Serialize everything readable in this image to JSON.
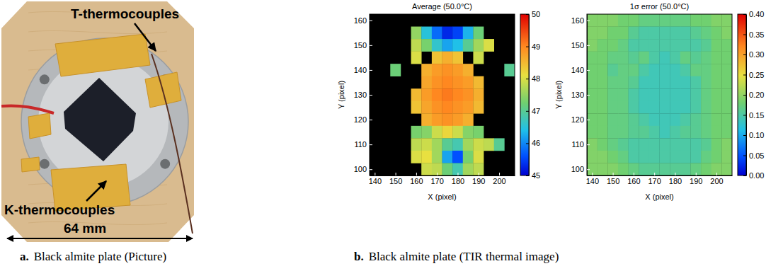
{
  "photo": {
    "labels": [
      "T-thermocouples",
      "K-thermocouples"
    ],
    "scale_label": "64 mm",
    "caption": {
      "letter": "a.",
      "text": "Black almite plate (Picture)"
    }
  },
  "figure_caption": {
    "letter": "b.",
    "text": "Black almite plate (TIR thermal image)"
  },
  "chart_data": [
    {
      "type": "heatmap",
      "title": "Average (50.0°C)",
      "x_label": "X (pixel)",
      "y_label": "Y (pixel)",
      "x": [
        140,
        145,
        150,
        155,
        160,
        165,
        170,
        175,
        180,
        185,
        190,
        195,
        200,
        205
      ],
      "y": [
        160,
        155,
        150,
        145,
        140,
        135,
        130,
        125,
        120,
        115,
        110,
        105,
        100
      ],
      "z": [
        [
          null,
          null,
          null,
          null,
          null,
          null,
          null,
          null,
          null,
          null,
          null,
          null,
          null,
          null
        ],
        [
          null,
          null,
          null,
          null,
          47.5,
          46.5,
          45.8,
          45.3,
          45.5,
          46.3,
          47.2,
          null,
          null,
          null
        ],
        [
          null,
          null,
          null,
          null,
          47.8,
          47.3,
          46.6,
          46.2,
          46.4,
          47.0,
          47.6,
          48.0,
          null,
          null
        ],
        [
          null,
          null,
          null,
          null,
          48.0,
          null,
          48.4,
          48.6,
          48.4,
          null,
          47.9,
          null,
          null,
          null
        ],
        [
          null,
          null,
          47.2,
          null,
          null,
          48.6,
          48.8,
          48.9,
          48.8,
          48.6,
          null,
          null,
          null,
          47.0
        ],
        [
          null,
          null,
          null,
          null,
          null,
          48.7,
          48.9,
          49.0,
          48.9,
          48.8,
          48.5,
          null,
          null,
          null
        ],
        [
          null,
          null,
          null,
          null,
          48.5,
          48.8,
          49.0,
          49.1,
          49.0,
          48.9,
          48.6,
          null,
          null,
          null
        ],
        [
          null,
          null,
          null,
          null,
          48.4,
          48.7,
          48.9,
          49.0,
          48.9,
          48.8,
          48.5,
          null,
          null,
          null
        ],
        [
          null,
          null,
          null,
          null,
          null,
          48.6,
          48.8,
          48.9,
          48.8,
          48.6,
          null,
          null,
          null,
          null
        ],
        [
          null,
          null,
          null,
          null,
          47.3,
          47.4,
          47.9,
          48.2,
          47.9,
          47.4,
          47.3,
          null,
          null,
          null
        ],
        [
          null,
          null,
          null,
          null,
          47.8,
          47.9,
          47.6,
          47.0,
          46.8,
          47.6,
          47.9,
          47.8,
          47.0,
          null
        ],
        [
          null,
          null,
          null,
          null,
          48.0,
          48.1,
          47.6,
          46.2,
          45.6,
          47.3,
          48.0,
          null,
          null,
          null
        ],
        [
          null,
          null,
          null,
          null,
          null,
          47.9,
          47.8,
          47.2,
          46.8,
          47.6,
          47.8,
          null,
          null,
          null
        ]
      ],
      "xlim": [
        137.5,
        207.5
      ],
      "ylim": [
        97.5,
        162.5
      ],
      "xticks": [
        140,
        150,
        160,
        170,
        180,
        190,
        200
      ],
      "yticks": [
        100,
        110,
        120,
        130,
        140,
        150,
        160
      ],
      "zlim": [
        45,
        50
      ],
      "zticks": [
        45,
        46,
        47,
        48,
        49,
        50
      ]
    },
    {
      "type": "heatmap",
      "title": "1σ error (50.0°C)",
      "x_label": "X (pixel)",
      "y_label": "Y (pixel)",
      "x": [
        140,
        145,
        150,
        155,
        160,
        165,
        170,
        175,
        180,
        185,
        190,
        195,
        200,
        205
      ],
      "y": [
        160,
        155,
        150,
        145,
        140,
        135,
        130,
        125,
        120,
        115,
        110,
        105,
        100
      ],
      "z": [
        [
          0.19,
          0.19,
          0.19,
          0.18,
          0.18,
          0.17,
          0.17,
          0.17,
          0.17,
          0.17,
          0.18,
          0.18,
          0.19,
          0.19
        ],
        [
          0.19,
          0.19,
          0.18,
          0.18,
          0.16,
          0.15,
          0.15,
          0.15,
          0.15,
          0.15,
          0.16,
          0.17,
          0.18,
          0.19
        ],
        [
          0.19,
          0.18,
          0.18,
          0.17,
          0.15,
          0.15,
          0.15,
          0.15,
          0.15,
          0.15,
          0.15,
          0.16,
          0.18,
          0.18
        ],
        [
          0.18,
          0.18,
          0.17,
          0.17,
          0.16,
          0.17,
          0.15,
          0.14,
          0.15,
          0.17,
          0.16,
          0.17,
          0.18,
          0.18
        ],
        [
          0.18,
          0.18,
          0.16,
          0.17,
          0.17,
          0.15,
          0.14,
          0.14,
          0.14,
          0.15,
          0.17,
          0.17,
          0.18,
          0.18
        ],
        [
          0.18,
          0.18,
          0.17,
          0.17,
          0.16,
          0.14,
          0.14,
          0.14,
          0.14,
          0.14,
          0.15,
          0.17,
          0.18,
          0.18
        ],
        [
          0.18,
          0.18,
          0.17,
          0.17,
          0.15,
          0.14,
          0.14,
          0.14,
          0.14,
          0.14,
          0.15,
          0.17,
          0.18,
          0.18
        ],
        [
          0.18,
          0.18,
          0.17,
          0.17,
          0.15,
          0.14,
          0.14,
          0.14,
          0.14,
          0.14,
          0.15,
          0.17,
          0.18,
          0.18
        ],
        [
          0.18,
          0.18,
          0.17,
          0.17,
          0.16,
          0.15,
          0.14,
          0.14,
          0.14,
          0.15,
          0.16,
          0.17,
          0.18,
          0.18
        ],
        [
          0.18,
          0.18,
          0.17,
          0.17,
          0.16,
          0.16,
          0.15,
          0.14,
          0.15,
          0.16,
          0.16,
          0.17,
          0.18,
          0.18
        ],
        [
          0.19,
          0.18,
          0.17,
          0.16,
          0.15,
          0.15,
          0.15,
          0.15,
          0.15,
          0.15,
          0.15,
          0.16,
          0.18,
          0.19
        ],
        [
          0.19,
          0.19,
          0.18,
          0.17,
          0.15,
          0.15,
          0.15,
          0.15,
          0.15,
          0.15,
          0.15,
          0.17,
          0.18,
          0.19
        ],
        [
          0.19,
          0.19,
          0.19,
          0.18,
          0.17,
          0.16,
          0.16,
          0.16,
          0.16,
          0.16,
          0.17,
          0.18,
          0.19,
          0.19
        ]
      ],
      "xlim": [
        137.5,
        207.5
      ],
      "ylim": [
        97.5,
        162.5
      ],
      "xticks": [
        140,
        150,
        160,
        170,
        180,
        190,
        200
      ],
      "yticks": [
        100,
        110,
        120,
        130,
        140,
        150,
        160
      ],
      "zlim": [
        0,
        0.4
      ],
      "zticks": [
        {
          "value": 0,
          "label": "0.00"
        },
        {
          "value": 0.05,
          "label": "0.05"
        },
        {
          "value": 0.1,
          "label": "0.10"
        },
        {
          "value": 0.15,
          "label": "0.15"
        },
        {
          "value": 0.2,
          "label": "0.20"
        },
        {
          "value": 0.25,
          "label": "0.25"
        },
        {
          "value": 0.3,
          "label": "0.30"
        },
        {
          "value": 0.35,
          "label": "0.35"
        },
        {
          "value": 0.4,
          "label": "0.40"
        }
      ]
    }
  ]
}
